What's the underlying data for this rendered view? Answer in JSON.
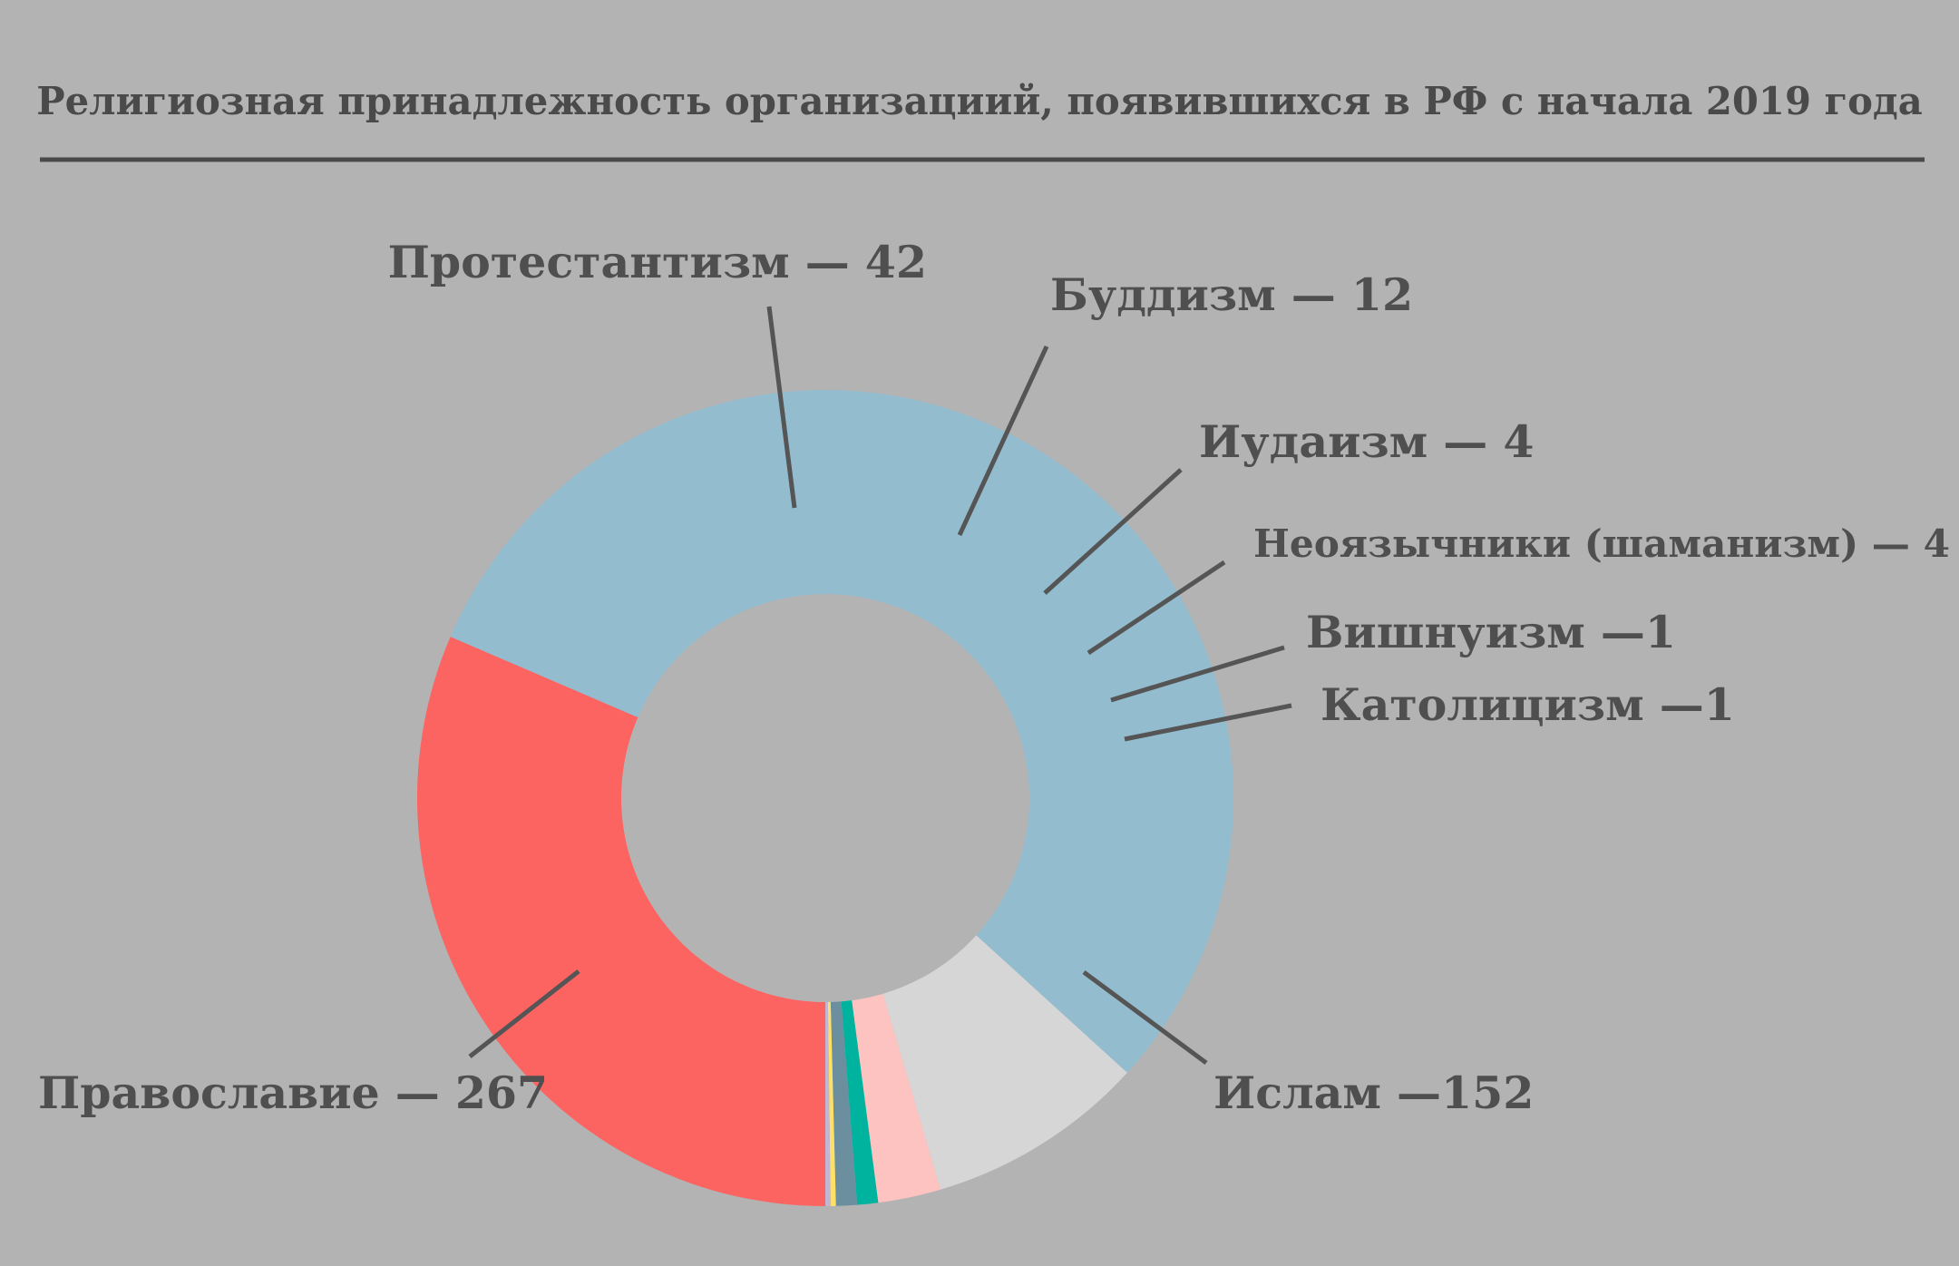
{
  "chart_data": {
    "type": "pie",
    "variant": "donut",
    "title": "Религиозная принадлежность организациий, появившихся в РФ с начала 2019 года",
    "slices": [
      {
        "name": "Ислам",
        "value": 152,
        "label": "Ислам —152",
        "color": "#fc6462"
      },
      {
        "name": "Православие",
        "value": 267,
        "label": "Православие — 267",
        "color": "#93bccf"
      },
      {
        "name": "Протестантизм",
        "value": 42,
        "label": "Протестантизм — 42",
        "color": "#d7d6d6"
      },
      {
        "name": "Буддизм",
        "value": 12,
        "label": "Буддизм — 12",
        "color": "#fdc3c1"
      },
      {
        "name": "Иудаизм",
        "value": 4,
        "label": "Иудаизм — 4",
        "color": "#00b39f"
      },
      {
        "name": "Неоязычники (шаманизм)",
        "value": 4,
        "label": "Неоязычники (шаманизм) — 4",
        "color": "#6b8f9e"
      },
      {
        "name": "Вишнуизм",
        "value": 1,
        "label": "Вишнуизм —1",
        "color": "#fde067"
      },
      {
        "name": "Католицизм",
        "value": 1,
        "label": "Католицизм —1",
        "color": "#c1b7d2"
      }
    ]
  }
}
